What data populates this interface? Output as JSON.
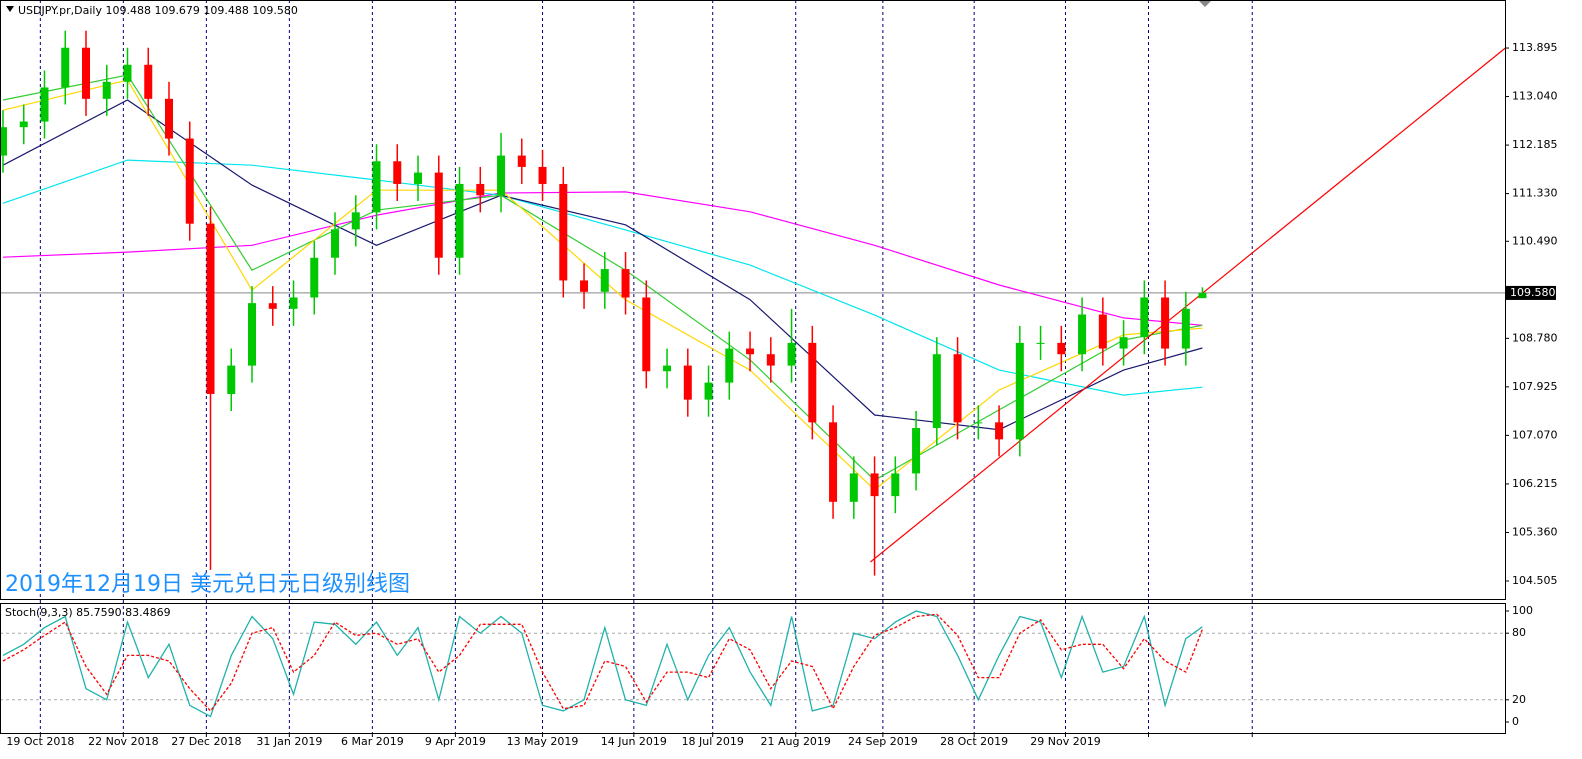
{
  "chart_data": [
    {
      "type": "candlestick",
      "title": "USDJPY.pr,Daily  109.488 109.679 109.488 109.580",
      "caption": "2019年12月19日 美元兑日元日级别线图",
      "xlim": [
        -0.72,
        361.9
      ],
      "xticks": [
        {
          "value": 9,
          "label": "19 Oct 2018"
        },
        {
          "value": 29,
          "label": "22 Nov 2018"
        },
        {
          "value": 49,
          "label": "27 Dec 2018"
        },
        {
          "value": 69,
          "label": "31 Jan 2019"
        },
        {
          "value": 89,
          "label": "6 Mar 2019"
        },
        {
          "value": 109,
          "label": "9 Apr 2019"
        },
        {
          "value": 130,
          "label": "13 May 2019"
        },
        {
          "value": 152,
          "label": "14 Jun 2019"
        },
        {
          "value": 171,
          "label": "18 Jul 2019"
        },
        {
          "value": 191,
          "label": "21 Aug 2019"
        },
        {
          "value": 212,
          "label": "24 Sep 2019"
        },
        {
          "value": 234,
          "label": "28 Oct 2019"
        },
        {
          "value": 256,
          "label": "29 Nov 2019"
        },
        {
          "value": 276,
          "label": null
        },
        {
          "value": 301,
          "label": null
        }
      ],
      "ylim": [
        104.17,
        114.741
      ],
      "yticks": [
        {
          "value": 113.895,
          "label": "113.895"
        },
        {
          "value": 113.04,
          "label": "113.040"
        },
        {
          "value": 112.185,
          "label": "112.185"
        },
        {
          "value": 111.33,
          "label": "111.330"
        },
        {
          "value": 110.49,
          "label": "110.490"
        },
        {
          "value": 108.78,
          "label": "108.780"
        },
        {
          "value": 107.925,
          "label": "107.925"
        },
        {
          "value": 107.07,
          "label": "107.070"
        },
        {
          "value": 106.215,
          "label": "106.215"
        },
        {
          "value": 105.36,
          "label": "105.360"
        },
        {
          "value": 104.505,
          "label": "104.505"
        }
      ],
      "last_price": {
        "value": 109.58,
        "label": "109.580"
      },
      "up_color": "#00c800",
      "down_color": "#ff0000",
      "x": [
        0,
        5,
        10,
        15,
        20,
        25,
        30,
        35,
        40,
        45,
        50,
        55,
        60,
        65,
        70,
        75,
        80,
        85,
        90,
        95,
        100,
        105,
        110,
        115,
        120,
        125,
        130,
        135,
        140,
        145,
        150,
        155,
        160,
        165,
        170,
        175,
        180,
        185,
        190,
        195,
        200,
        205,
        210,
        215,
        220,
        225,
        230,
        235,
        240,
        245,
        250,
        255,
        260,
        265,
        270,
        275,
        280,
        285,
        289
      ],
      "open": [
        112.0,
        112.5,
        112.6,
        113.2,
        113.9,
        113.0,
        113.3,
        113.6,
        113.0,
        112.3,
        110.8,
        107.8,
        108.3,
        109.4,
        109.3,
        109.5,
        110.2,
        110.7,
        111.0,
        111.9,
        111.5,
        111.7,
        110.2,
        111.5,
        111.3,
        112.0,
        111.8,
        111.5,
        109.8,
        109.6,
        110.0,
        109.5,
        108.2,
        108.3,
        107.7,
        108.0,
        108.6,
        108.5,
        108.3,
        108.7,
        107.3,
        105.9,
        106.4,
        106.0,
        106.4,
        107.2,
        108.5,
        107.3,
        107.3,
        107.0,
        108.7,
        108.7,
        108.5,
        109.2,
        108.6,
        108.8,
        109.5,
        108.6,
        109.488
      ],
      "high": [
        112.8,
        112.9,
        113.5,
        114.2,
        114.2,
        113.6,
        113.9,
        113.9,
        113.3,
        112.6,
        111.1,
        108.6,
        109.7,
        109.7,
        109.8,
        110.5,
        111.0,
        111.3,
        112.2,
        112.2,
        112.0,
        112.0,
        111.8,
        111.8,
        112.4,
        112.3,
        112.1,
        111.8,
        110.1,
        110.3,
        110.3,
        109.8,
        108.6,
        108.6,
        108.3,
        108.9,
        108.9,
        108.8,
        109.3,
        109.0,
        107.6,
        106.7,
        106.7,
        106.7,
        107.5,
        108.8,
        108.8,
        107.6,
        107.6,
        109.0,
        109.0,
        109.0,
        109.5,
        109.5,
        109.1,
        109.8,
        109.8,
        109.6,
        109.679
      ],
      "low": [
        111.7,
        112.2,
        112.3,
        112.9,
        112.7,
        112.7,
        113.0,
        112.7,
        112.0,
        110.5,
        104.7,
        107.5,
        108.0,
        109.0,
        109.0,
        109.2,
        109.9,
        110.4,
        110.7,
        111.2,
        111.2,
        109.9,
        109.9,
        111.0,
        111.0,
        111.5,
        111.2,
        109.5,
        109.3,
        109.3,
        109.2,
        107.9,
        107.9,
        107.4,
        107.4,
        107.7,
        108.2,
        108.0,
        108.0,
        107.0,
        105.6,
        105.6,
        104.6,
        105.7,
        106.1,
        106.9,
        107.0,
        107.0,
        106.7,
        106.7,
        108.4,
        108.2,
        108.2,
        108.3,
        108.3,
        108.5,
        108.3,
        108.3,
        109.488
      ],
      "close": [
        112.5,
        112.6,
        113.2,
        113.9,
        113.0,
        113.3,
        113.6,
        113.0,
        112.3,
        110.8,
        107.8,
        108.3,
        109.4,
        109.3,
        109.5,
        110.2,
        110.7,
        111.0,
        111.9,
        111.5,
        111.7,
        110.2,
        111.5,
        111.3,
        112.0,
        111.8,
        111.5,
        109.8,
        109.6,
        110.0,
        109.5,
        108.2,
        108.3,
        107.7,
        108.0,
        108.6,
        108.5,
        108.3,
        108.7,
        107.3,
        105.9,
        106.4,
        106.0,
        106.4,
        107.2,
        108.5,
        107.3,
        107.3,
        107.0,
        108.7,
        108.7,
        108.5,
        109.2,
        108.6,
        108.8,
        109.5,
        108.6,
        109.3,
        109.58
      ],
      "overlays": [
        {
          "color": "#ff00ff",
          "x": [
            0,
            30,
            60,
            90,
            120,
            150,
            180,
            210,
            240,
            270,
            289
          ],
          "values": [
            110.21,
            110.3,
            110.42,
            110.95,
            111.34,
            111.36,
            111.01,
            110.42,
            109.72,
            109.14,
            109.01
          ]
        },
        {
          "color": "#00e5ee",
          "x": [
            0,
            30,
            60,
            90,
            120,
            150,
            180,
            210,
            240,
            270,
            289
          ],
          "values": [
            111.16,
            111.92,
            111.83,
            111.57,
            111.3,
            110.69,
            110.07,
            109.19,
            108.22,
            107.78,
            107.92
          ]
        },
        {
          "color": "#191970",
          "x": [
            0,
            30,
            60,
            90,
            120,
            150,
            180,
            210,
            240,
            270,
            289
          ],
          "values": [
            111.83,
            112.98,
            111.48,
            110.42,
            111.3,
            110.78,
            109.46,
            107.43,
            107.17,
            108.22,
            108.61
          ]
        },
        {
          "color": "#32cd32",
          "x": [
            0,
            30,
            60,
            90,
            120,
            150,
            180,
            210,
            240,
            270,
            289
          ],
          "values": [
            112.98,
            113.42,
            109.98,
            111.04,
            111.3,
            109.98,
            108.4,
            106.28,
            107.52,
            108.75,
            109.01
          ]
        },
        {
          "color": "#ffd700",
          "x": [
            0,
            30,
            60,
            90,
            120,
            150,
            180,
            210,
            240,
            270,
            289
          ],
          "values": [
            112.8,
            113.33,
            109.63,
            111.39,
            111.39,
            109.46,
            108.22,
            106.11,
            107.87,
            108.84,
            108.96
          ]
        }
      ],
      "trendline": {
        "color": "#ff0000",
        "x": [
          209,
          362
        ],
        "values": [
          104.84,
          113.895
        ]
      }
    },
    {
      "type": "line",
      "title": "Stoch(9,3,3) 85.7590 83.4869",
      "ylim": [
        -9.9,
        107.2
      ],
      "yticks": [
        100,
        80,
        20,
        0
      ],
      "levels": [
        20,
        80
      ],
      "x": [
        0,
        5,
        10,
        15,
        20,
        25,
        30,
        35,
        40,
        45,
        50,
        55,
        60,
        65,
        70,
        75,
        80,
        85,
        90,
        95,
        100,
        105,
        110,
        115,
        120,
        125,
        130,
        135,
        140,
        145,
        150,
        155,
        160,
        165,
        170,
        175,
        180,
        185,
        190,
        195,
        200,
        205,
        210,
        215,
        220,
        225,
        230,
        235,
        240,
        245,
        250,
        255,
        260,
        265,
        270,
        275,
        280,
        285,
        289
      ],
      "series": [
        {
          "color": "#20b2aa",
          "dash": false,
          "values": [
            60,
            70,
            85,
            95,
            30,
            20,
            90,
            40,
            70,
            15,
            5,
            60,
            95,
            75,
            25,
            90,
            88,
            70,
            90,
            60,
            85,
            20,
            95,
            80,
            95,
            80,
            15,
            10,
            20,
            85,
            20,
            15,
            70,
            20,
            60,
            85,
            45,
            15,
            95,
            10,
            15,
            80,
            75,
            90,
            100,
            95,
            60,
            20,
            60,
            95,
            90,
            40,
            95,
            45,
            50,
            95,
            15,
            75,
            85.759
          ]
        },
        {
          "color": "#ff0000",
          "dash": true,
          "values": [
            55,
            65,
            78,
            90,
            50,
            25,
            60,
            60,
            55,
            30,
            10,
            35,
            80,
            85,
            45,
            60,
            90,
            78,
            80,
            70,
            75,
            45,
            60,
            88,
            88,
            88,
            45,
            12,
            15,
            55,
            50,
            18,
            45,
            45,
            40,
            75,
            65,
            30,
            55,
            50,
            12,
            50,
            78,
            85,
            95,
            97,
            78,
            40,
            40,
            80,
            92,
            65,
            70,
            70,
            48,
            75,
            55,
            45,
            83.4869
          ]
        }
      ]
    }
  ]
}
